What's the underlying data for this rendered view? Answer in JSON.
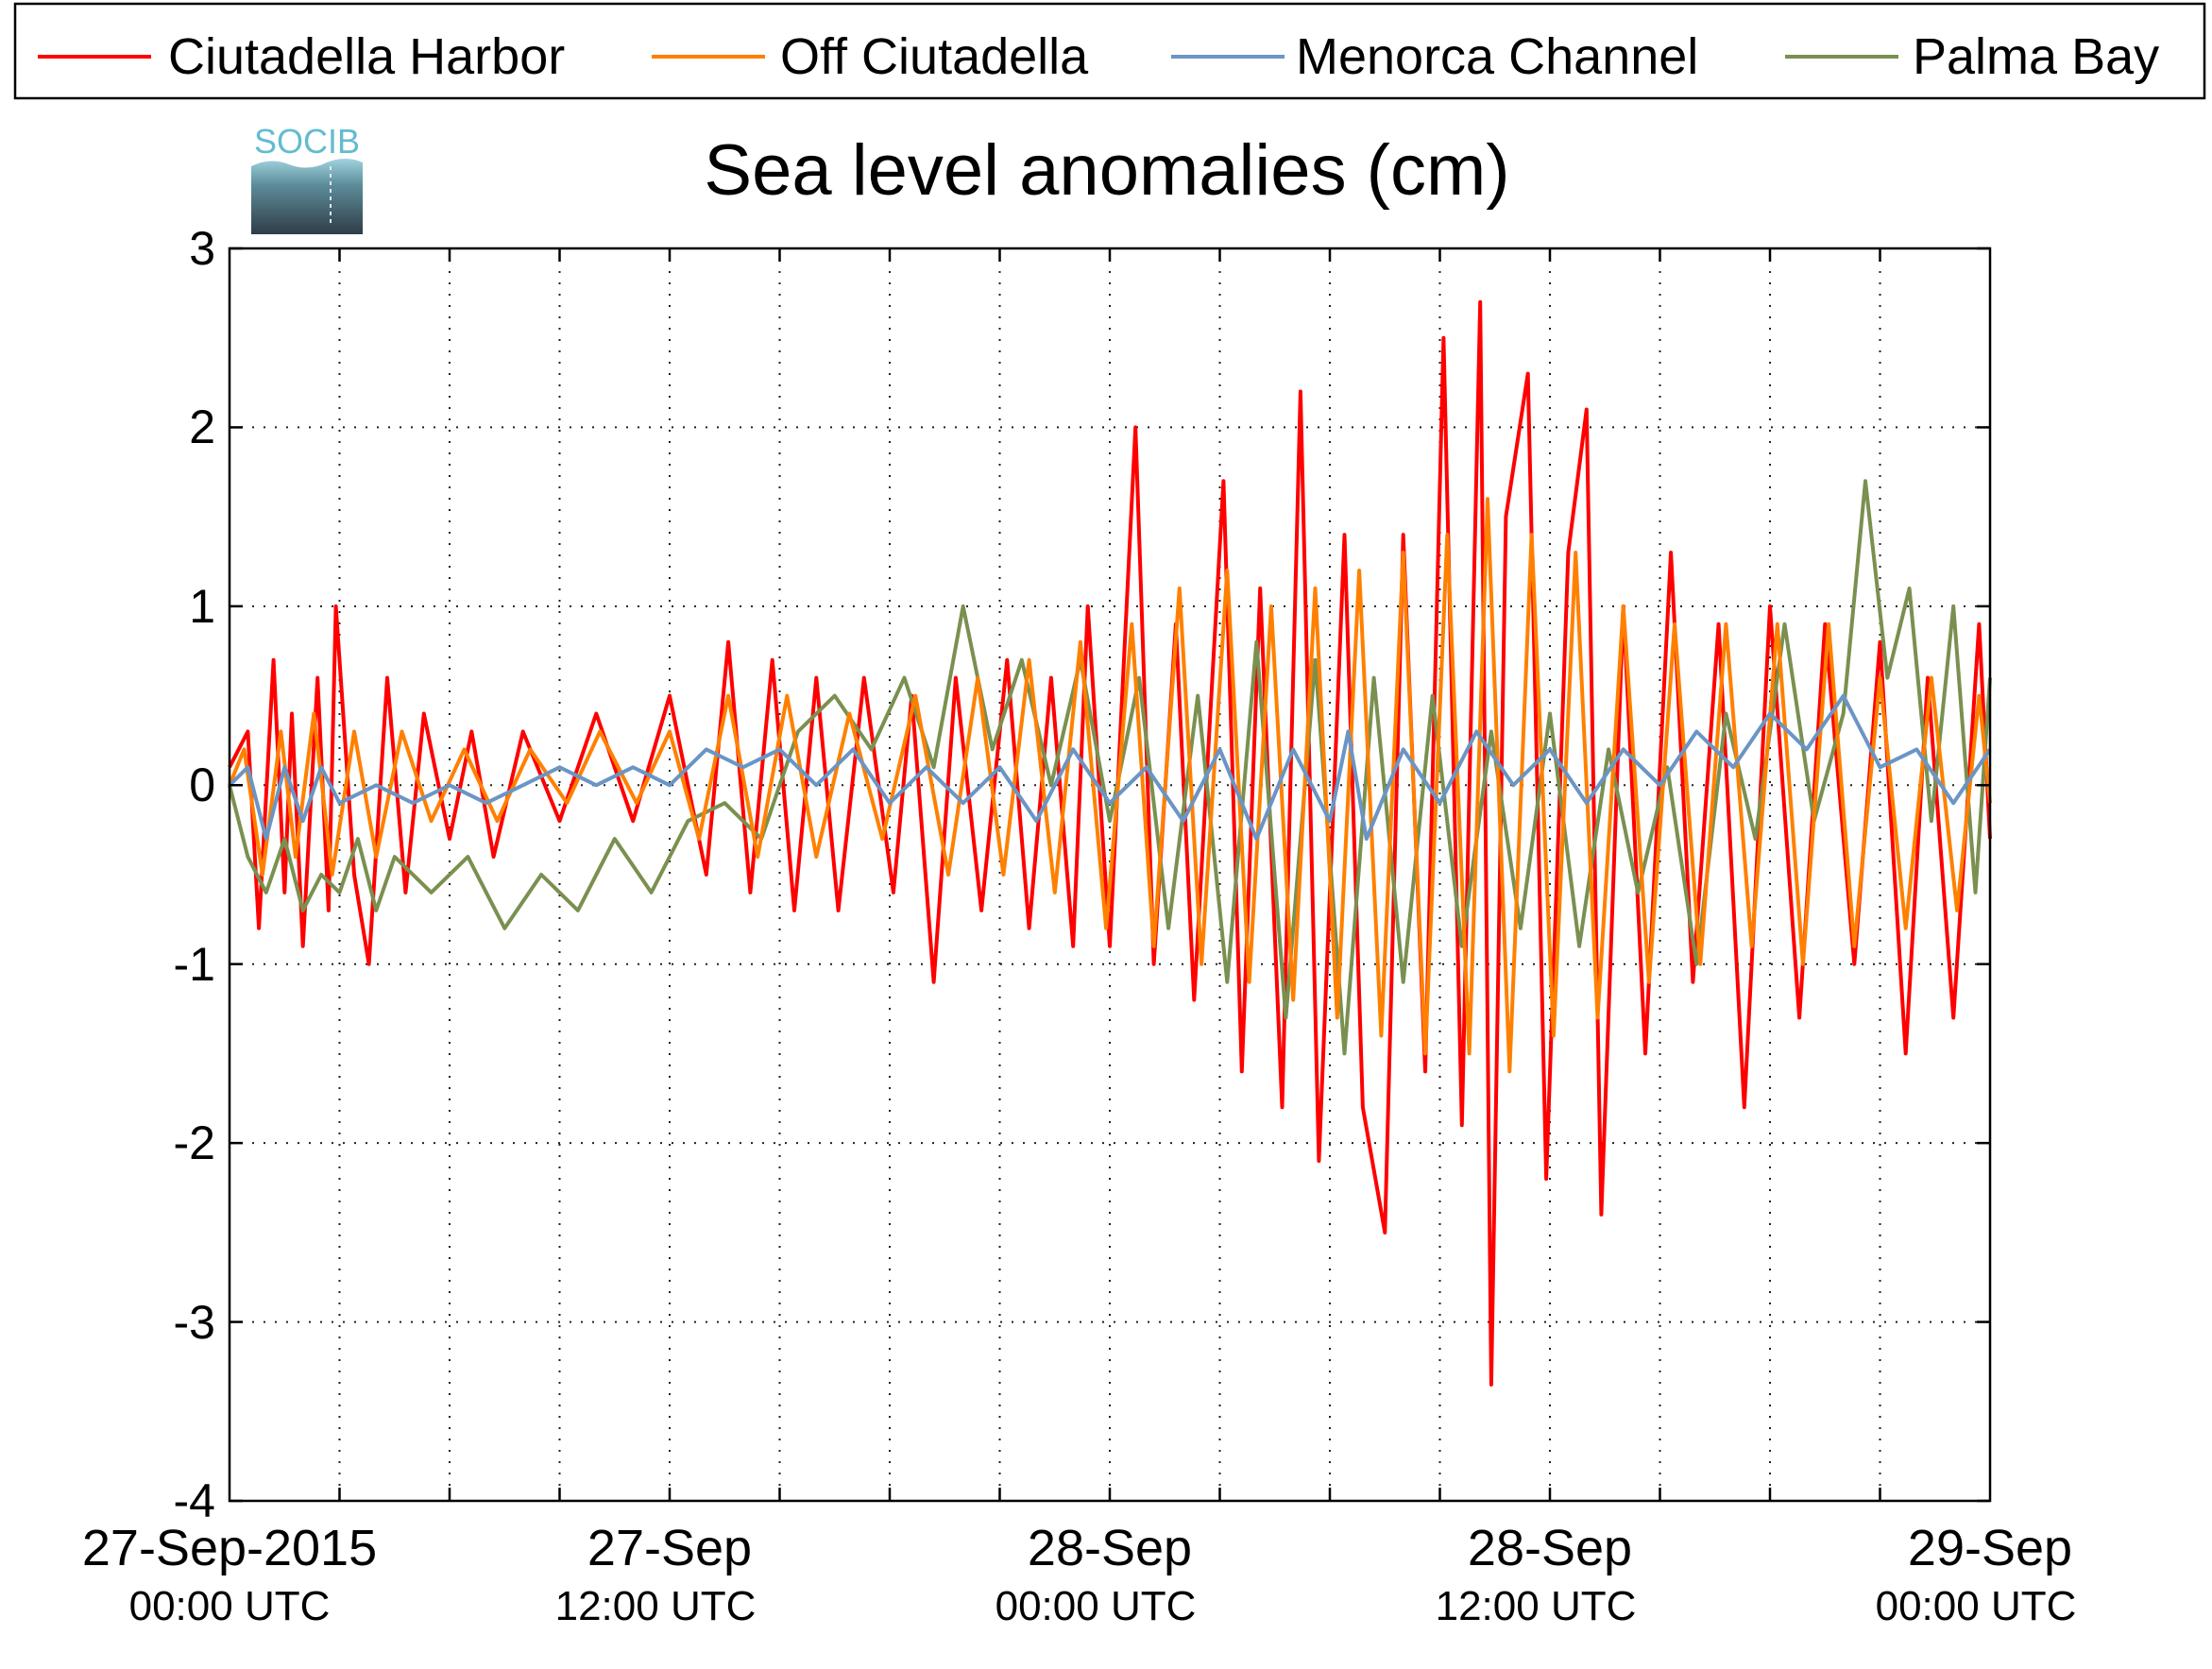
{
  "chart_data": {
    "type": "line",
    "title": "Sea level anomalies (cm)",
    "logo_text": "SOCIB",
    "xlabel": "",
    "ylabel": "",
    "x_start": "27-Sep-2015 00:00 UTC",
    "x_end": "29-Sep-2015 00:00 UTC",
    "xlim_hours": [
      -3,
      45
    ],
    "ylim": [
      -4,
      3
    ],
    "y_ticks": [
      "-4",
      "-3",
      "-2",
      "-1",
      "0",
      "1",
      "2",
      "3"
    ],
    "x_tick_labels": [
      {
        "date": "27-Sep-2015",
        "time": "00:00 UTC"
      },
      {
        "date": "27-Sep",
        "time": "12:00 UTC"
      },
      {
        "date": "28-Sep",
        "time": "00:00 UTC"
      },
      {
        "date": "28-Sep",
        "time": "12:00 UTC"
      },
      {
        "date": "29-Sep",
        "time": "00:00 UTC"
      }
    ],
    "grid": true,
    "legend_position": "top",
    "series": [
      {
        "name": "Ciutadella Harbor",
        "color": "#ff0000",
        "points": [
          [
            -3,
            0.1
          ],
          [
            -2.5,
            0.3
          ],
          [
            -2.2,
            -0.8
          ],
          [
            -1.8,
            0.7
          ],
          [
            -1.5,
            -0.6
          ],
          [
            -1.3,
            0.4
          ],
          [
            -1,
            -0.9
          ],
          [
            -0.6,
            0.6
          ],
          [
            -0.3,
            -0.7
          ],
          [
            -0.1,
            1.0
          ],
          [
            0.4,
            -0.5
          ],
          [
            0.8,
            -1.0
          ],
          [
            1.3,
            0.6
          ],
          [
            1.8,
            -0.6
          ],
          [
            2.3,
            0.4
          ],
          [
            3,
            -0.3
          ],
          [
            3.6,
            0.3
          ],
          [
            4.2,
            -0.4
          ],
          [
            5,
            0.3
          ],
          [
            6,
            -0.2
          ],
          [
            7,
            0.4
          ],
          [
            8,
            -0.2
          ],
          [
            9,
            0.5
          ],
          [
            10,
            -0.5
          ],
          [
            10.6,
            0.8
          ],
          [
            11.2,
            -0.6
          ],
          [
            11.8,
            0.7
          ],
          [
            12.4,
            -0.7
          ],
          [
            13,
            0.6
          ],
          [
            13.6,
            -0.7
          ],
          [
            14.3,
            0.6
          ],
          [
            15.1,
            -0.6
          ],
          [
            15.6,
            0.5
          ],
          [
            16.2,
            -1.1
          ],
          [
            16.8,
            0.6
          ],
          [
            17.5,
            -0.7
          ],
          [
            18.2,
            0.7
          ],
          [
            18.8,
            -0.8
          ],
          [
            19.4,
            0.6
          ],
          [
            20,
            -0.9
          ],
          [
            20.4,
            1.0
          ],
          [
            21,
            -0.9
          ],
          [
            21.7,
            2.0
          ],
          [
            22.2,
            -1.0
          ],
          [
            22.8,
            0.9
          ],
          [
            23.3,
            -1.2
          ],
          [
            24.1,
            1.7
          ],
          [
            24.6,
            -1.6
          ],
          [
            25.1,
            1.1
          ],
          [
            25.7,
            -1.8
          ],
          [
            26.2,
            2.2
          ],
          [
            26.7,
            -2.1
          ],
          [
            27.4,
            1.4
          ],
          [
            27.9,
            -1.8
          ],
          [
            28.5,
            -2.5
          ],
          [
            29,
            1.4
          ],
          [
            29.6,
            -1.6
          ],
          [
            30.1,
            2.5
          ],
          [
            30.6,
            -1.9
          ],
          [
            31.1,
            2.7
          ],
          [
            31.4,
            -3.35
          ],
          [
            31.8,
            1.5
          ],
          [
            32.4,
            2.3
          ],
          [
            32.9,
            -2.2
          ],
          [
            33.5,
            1.3
          ],
          [
            34,
            2.1
          ],
          [
            34.4,
            -2.4
          ],
          [
            35,
            1.0
          ],
          [
            35.6,
            -1.5
          ],
          [
            36.3,
            1.3
          ],
          [
            36.9,
            -1.1
          ],
          [
            37.6,
            0.9
          ],
          [
            38.3,
            -1.8
          ],
          [
            39,
            1.0
          ],
          [
            39.8,
            -1.3
          ],
          [
            40.5,
            0.9
          ],
          [
            41.3,
            -1.0
          ],
          [
            42,
            0.8
          ],
          [
            42.7,
            -1.5
          ],
          [
            43.3,
            0.6
          ],
          [
            44,
            -1.3
          ],
          [
            44.7,
            0.9
          ],
          [
            45,
            -0.3
          ]
        ]
      },
      {
        "name": "Off Ciutadella",
        "color": "#ff8000",
        "points": [
          [
            -3,
            0.0
          ],
          [
            -2.6,
            0.2
          ],
          [
            -2.1,
            -0.5
          ],
          [
            -1.6,
            0.3
          ],
          [
            -1.2,
            -0.4
          ],
          [
            -0.7,
            0.4
          ],
          [
            -0.2,
            -0.5
          ],
          [
            0.4,
            0.3
          ],
          [
            1,
            -0.4
          ],
          [
            1.7,
            0.3
          ],
          [
            2.5,
            -0.2
          ],
          [
            3.4,
            0.2
          ],
          [
            4.3,
            -0.2
          ],
          [
            5.2,
            0.2
          ],
          [
            6.2,
            -0.1
          ],
          [
            7.1,
            0.3
          ],
          [
            8.1,
            -0.1
          ],
          [
            9,
            0.3
          ],
          [
            9.8,
            -0.3
          ],
          [
            10.6,
            0.5
          ],
          [
            11.4,
            -0.4
          ],
          [
            12.2,
            0.5
          ],
          [
            13,
            -0.4
          ],
          [
            13.9,
            0.4
          ],
          [
            14.8,
            -0.3
          ],
          [
            15.7,
            0.5
          ],
          [
            16.6,
            -0.5
          ],
          [
            17.4,
            0.6
          ],
          [
            18.1,
            -0.5
          ],
          [
            18.8,
            0.7
          ],
          [
            19.5,
            -0.6
          ],
          [
            20.2,
            0.8
          ],
          [
            20.9,
            -0.8
          ],
          [
            21.6,
            0.9
          ],
          [
            22.2,
            -0.9
          ],
          [
            22.9,
            1.1
          ],
          [
            23.5,
            -1.0
          ],
          [
            24.2,
            1.2
          ],
          [
            24.8,
            -1.1
          ],
          [
            25.4,
            1.0
          ],
          [
            26,
            -1.2
          ],
          [
            26.6,
            1.1
          ],
          [
            27.2,
            -1.3
          ],
          [
            27.8,
            1.2
          ],
          [
            28.4,
            -1.4
          ],
          [
            29,
            1.3
          ],
          [
            29.6,
            -1.5
          ],
          [
            30.2,
            1.4
          ],
          [
            30.8,
            -1.5
          ],
          [
            31.3,
            1.6
          ],
          [
            31.9,
            -1.6
          ],
          [
            32.5,
            1.4
          ],
          [
            33.1,
            -1.4
          ],
          [
            33.7,
            1.3
          ],
          [
            34.3,
            -1.3
          ],
          [
            35,
            1.0
          ],
          [
            35.7,
            -1.1
          ],
          [
            36.4,
            0.9
          ],
          [
            37.1,
            -1.0
          ],
          [
            37.8,
            0.9
          ],
          [
            38.5,
            -0.9
          ],
          [
            39.2,
            0.9
          ],
          [
            39.9,
            -1.0
          ],
          [
            40.6,
            0.9
          ],
          [
            41.3,
            -0.9
          ],
          [
            42,
            0.6
          ],
          [
            42.7,
            -0.8
          ],
          [
            43.4,
            0.6
          ],
          [
            44.1,
            -0.7
          ],
          [
            44.7,
            0.5
          ],
          [
            45,
            -0.1
          ]
        ]
      },
      {
        "name": "Menorca Channel",
        "color": "#6a95c4",
        "points": [
          [
            -3,
            0.0
          ],
          [
            -2.5,
            0.1
          ],
          [
            -2,
            -0.3
          ],
          [
            -1.5,
            0.1
          ],
          [
            -1,
            -0.2
          ],
          [
            -0.5,
            0.1
          ],
          [
            0,
            -0.1
          ],
          [
            1,
            0.0
          ],
          [
            2,
            -0.1
          ],
          [
            3,
            0.0
          ],
          [
            4,
            -0.1
          ],
          [
            5,
            0.0
          ],
          [
            6,
            0.1
          ],
          [
            7,
            0.0
          ],
          [
            8,
            0.1
          ],
          [
            9,
            0.0
          ],
          [
            10,
            0.2
          ],
          [
            11,
            0.1
          ],
          [
            12,
            0.2
          ],
          [
            13,
            0.0
          ],
          [
            14,
            0.2
          ],
          [
            15,
            -0.1
          ],
          [
            16,
            0.1
          ],
          [
            17,
            -0.1
          ],
          [
            18,
            0.1
          ],
          [
            19,
            -0.2
          ],
          [
            20,
            0.2
          ],
          [
            21,
            -0.1
          ],
          [
            22,
            0.1
          ],
          [
            23,
            -0.2
          ],
          [
            24,
            0.2
          ],
          [
            25,
            -0.3
          ],
          [
            26,
            0.2
          ],
          [
            27,
            -0.2
          ],
          [
            27.5,
            0.3
          ],
          [
            28,
            -0.3
          ],
          [
            29,
            0.2
          ],
          [
            30,
            -0.1
          ],
          [
            31,
            0.3
          ],
          [
            32,
            0.0
          ],
          [
            33,
            0.2
          ],
          [
            34,
            -0.1
          ],
          [
            35,
            0.2
          ],
          [
            36,
            0.0
          ],
          [
            37,
            0.3
          ],
          [
            38,
            0.1
          ],
          [
            39,
            0.4
          ],
          [
            40,
            0.2
          ],
          [
            41,
            0.5
          ],
          [
            42,
            0.1
          ],
          [
            43,
            0.2
          ],
          [
            44,
            -0.1
          ],
          [
            45,
            0.2
          ]
        ]
      },
      {
        "name": "Palma Bay",
        "color": "#7a9050",
        "points": [
          [
            -3,
            0.0
          ],
          [
            -2.5,
            -0.4
          ],
          [
            -2,
            -0.6
          ],
          [
            -1.5,
            -0.3
          ],
          [
            -1,
            -0.7
          ],
          [
            -0.5,
            -0.5
          ],
          [
            0,
            -0.6
          ],
          [
            0.5,
            -0.3
          ],
          [
            1,
            -0.7
          ],
          [
            1.5,
            -0.4
          ],
          [
            2.5,
            -0.6
          ],
          [
            3.5,
            -0.4
          ],
          [
            4.5,
            -0.8
          ],
          [
            5.5,
            -0.5
          ],
          [
            6.5,
            -0.7
          ],
          [
            7.5,
            -0.3
          ],
          [
            8.5,
            -0.6
          ],
          [
            9.5,
            -0.2
          ],
          [
            10.5,
            -0.1
          ],
          [
            11.5,
            -0.3
          ],
          [
            12.5,
            0.3
          ],
          [
            13.5,
            0.5
          ],
          [
            14.5,
            0.2
          ],
          [
            15.4,
            0.6
          ],
          [
            16.2,
            0.1
          ],
          [
            17,
            1.0
          ],
          [
            17.8,
            0.2
          ],
          [
            18.6,
            0.7
          ],
          [
            19.4,
            0.0
          ],
          [
            20.2,
            0.7
          ],
          [
            21,
            -0.2
          ],
          [
            21.8,
            0.6
          ],
          [
            22.6,
            -0.8
          ],
          [
            23.4,
            0.5
          ],
          [
            24.2,
            -1.1
          ],
          [
            25,
            0.8
          ],
          [
            25.8,
            -1.3
          ],
          [
            26.6,
            0.7
          ],
          [
            27.4,
            -1.5
          ],
          [
            28.2,
            0.6
          ],
          [
            29,
            -1.1
          ],
          [
            29.8,
            0.5
          ],
          [
            30.6,
            -0.9
          ],
          [
            31.4,
            0.3
          ],
          [
            32.2,
            -0.8
          ],
          [
            33,
            0.4
          ],
          [
            33.8,
            -0.9
          ],
          [
            34.6,
            0.2
          ],
          [
            35.4,
            -0.6
          ],
          [
            36.2,
            0.1
          ],
          [
            37,
            -1.0
          ],
          [
            37.8,
            0.4
          ],
          [
            38.6,
            -0.3
          ],
          [
            39.4,
            0.9
          ],
          [
            40.2,
            -0.2
          ],
          [
            41,
            0.4
          ],
          [
            41.6,
            1.7
          ],
          [
            42.2,
            0.6
          ],
          [
            42.8,
            1.1
          ],
          [
            43.4,
            -0.2
          ],
          [
            44,
            1.0
          ],
          [
            44.6,
            -0.6
          ],
          [
            45,
            0.6
          ]
        ]
      }
    ]
  }
}
